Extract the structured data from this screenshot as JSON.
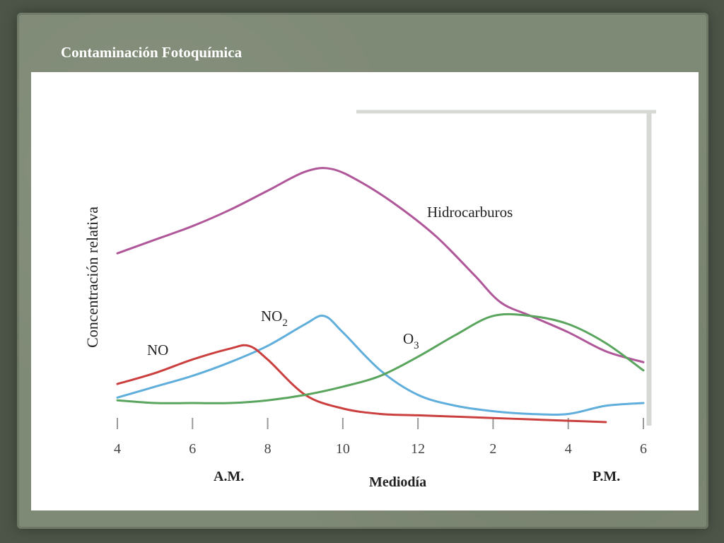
{
  "slide": {
    "title": "Contaminación Fotoquímica"
  },
  "chart_data": {
    "type": "line",
    "ylabel": "Concentración relativa",
    "xlabel": "Mediodía",
    "x_ticks": [
      "4",
      "6",
      "8",
      "10",
      "12",
      "2",
      "4",
      "6"
    ],
    "x_period_labels": {
      "am": "A.M.",
      "pm": "P.M."
    },
    "xlim": [
      4,
      18
    ],
    "ylim": [
      0,
      1
    ],
    "grid": false,
    "series": [
      {
        "name": "Hidrocarburos",
        "color": "#b0579a",
        "x": [
          4,
          5,
          6,
          7,
          8,
          9,
          9.7,
          10.5,
          11.5,
          12.5,
          13.5,
          14.2,
          15,
          16,
          17,
          18
        ],
        "y": [
          0.62,
          0.67,
          0.72,
          0.78,
          0.85,
          0.92,
          0.93,
          0.88,
          0.79,
          0.68,
          0.54,
          0.44,
          0.39,
          0.33,
          0.26,
          0.22
        ]
      },
      {
        "name": "NO₂",
        "color": "#5faedb",
        "x": [
          4,
          5,
          6,
          7,
          8,
          9,
          9.5,
          10,
          11,
          12,
          13,
          14,
          15,
          16,
          17,
          18
        ],
        "y": [
          0.09,
          0.13,
          0.17,
          0.22,
          0.28,
          0.36,
          0.39,
          0.33,
          0.19,
          0.1,
          0.06,
          0.04,
          0.03,
          0.03,
          0.06,
          0.07
        ]
      },
      {
        "name": "NO",
        "color": "#cc3f3f",
        "x": [
          4,
          5,
          6,
          7,
          7.5,
          8,
          9,
          10,
          11,
          12,
          13,
          14,
          15,
          16,
          17
        ],
        "y": [
          0.14,
          0.18,
          0.23,
          0.27,
          0.28,
          0.23,
          0.1,
          0.05,
          0.03,
          0.025,
          0.02,
          0.015,
          0.01,
          0.005,
          0.0
        ]
      },
      {
        "name": "O₃",
        "color": "#5aa55e",
        "x": [
          4,
          5,
          6,
          7,
          8,
          9,
          10,
          11,
          12,
          13,
          14,
          15,
          16,
          17,
          18
        ],
        "y": [
          0.08,
          0.07,
          0.07,
          0.07,
          0.08,
          0.1,
          0.13,
          0.17,
          0.24,
          0.32,
          0.39,
          0.39,
          0.36,
          0.29,
          0.19
        ]
      }
    ]
  }
}
